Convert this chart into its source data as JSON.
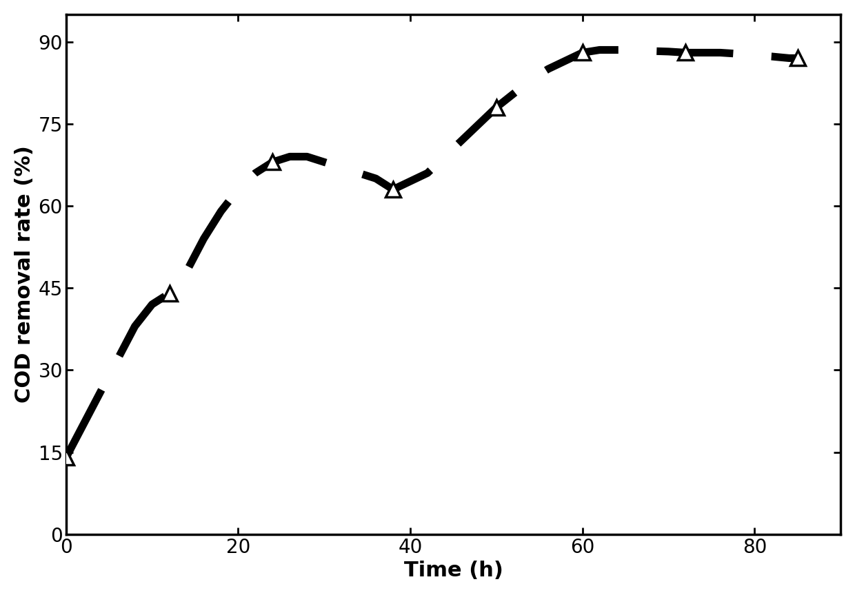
{
  "x_data": [
    0,
    12,
    24,
    38,
    50,
    60,
    72,
    85
  ],
  "y_data": [
    14,
    44,
    68,
    63,
    78,
    88,
    88,
    87
  ],
  "smooth_x": [
    0,
    2,
    4,
    6,
    8,
    10,
    12,
    14,
    16,
    18,
    20,
    22,
    24,
    26,
    28,
    30,
    32,
    34,
    36,
    38,
    40,
    42,
    44,
    46,
    48,
    50,
    52,
    54,
    56,
    58,
    60,
    62,
    64,
    66,
    68,
    70,
    72,
    74,
    76,
    78,
    80,
    82,
    84,
    85
  ],
  "smooth_y": [
    14,
    20,
    26,
    32,
    38,
    42,
    44,
    48,
    54,
    59,
    63,
    66,
    68,
    69,
    69,
    68,
    67,
    66,
    65,
    63,
    64.5,
    66,
    69,
    72,
    75,
    78,
    80.5,
    83,
    85,
    86.5,
    88,
    88.5,
    88.5,
    88.5,
    88.3,
    88.2,
    88,
    88,
    88,
    87.8,
    87.5,
    87.3,
    87,
    87
  ],
  "xlabel": "Time (h)",
  "ylabel": "COD removal rate (%)",
  "xlim": [
    0,
    90
  ],
  "ylim": [
    0,
    95
  ],
  "xticks": [
    0,
    20,
    40,
    60,
    80
  ],
  "yticks": [
    0,
    15,
    30,
    45,
    60,
    75,
    90
  ],
  "line_color": "#000000",
  "marker_color": "#000000",
  "line_width": 8.0,
  "marker_size": 16,
  "marker_edge_width": 2.5,
  "xlabel_fontsize": 22,
  "ylabel_fontsize": 22,
  "tick_fontsize": 20,
  "background_color": "#ffffff",
  "dash_style": [
    10,
    5
  ],
  "spine_linewidth": 2.5
}
